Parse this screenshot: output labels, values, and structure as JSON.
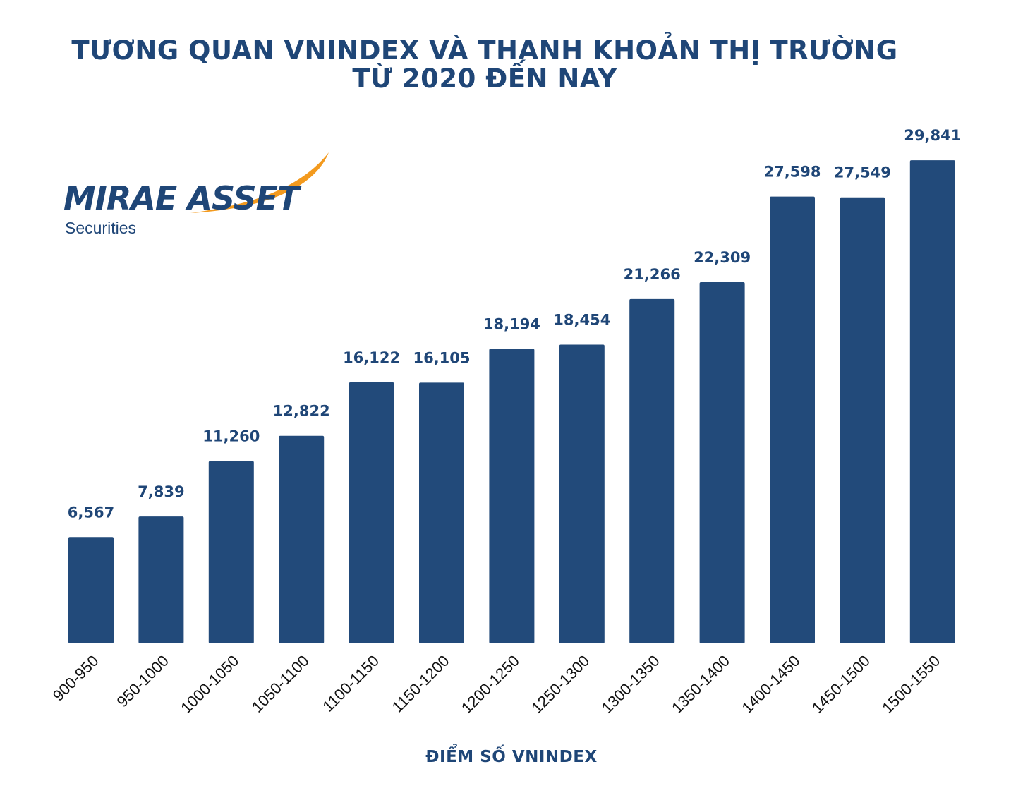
{
  "header": {
    "title_line1": "TƯƠNG QUAN VNINDEX VÀ THANH KHOẢN THỊ TRƯỜNG",
    "title_line2": "TỪ 2020 ĐẾN NAY"
  },
  "logo": {
    "name": "MIRAE ASSET",
    "sub": "Securities",
    "accent_color": "#f39a1e",
    "brand_color": "#1f4677"
  },
  "chart_data": {
    "type": "bar",
    "title": "TƯƠNG QUAN VNINDEX VÀ THANH KHOẢN THỊ TRƯỜNG TỪ 2020 ĐẾN NAY",
    "xlabel": "ĐIỂM SỐ VNINDEX",
    "ylabel": "",
    "categories": [
      "900-950",
      "950-1000",
      "1000-1050",
      "1050-1100",
      "1100-1150",
      "1150-1200",
      "1200-1250",
      "1250-1300",
      "1300-1350",
      "1350-1400",
      "1400-1450",
      "1450-1500",
      "1500-1550"
    ],
    "values": [
      6567,
      7839,
      11260,
      12822,
      16122,
      16105,
      18194,
      18454,
      21266,
      22309,
      27598,
      27549,
      29841
    ],
    "value_labels": [
      "6,567",
      "7,839",
      "11,260",
      "12,822",
      "16,122",
      "16,105",
      "18,194",
      "18,454",
      "21,266",
      "22,309",
      "27,598",
      "27,549",
      "29,841"
    ],
    "ylim": [
      0,
      30500
    ],
    "grid": false,
    "legend": "none",
    "bar_color": "#224a7a",
    "label_color": "#1f4677"
  }
}
